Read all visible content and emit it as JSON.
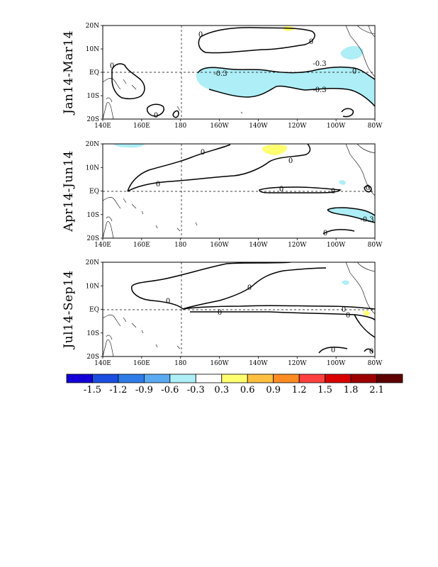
{
  "lat_labels": [
    "20N",
    "10N",
    "EQ",
    "10S",
    "20S"
  ],
  "lon_labels": [
    "140E",
    "160E",
    "180",
    "160W",
    "140W",
    "120W",
    "100W",
    "80W"
  ],
  "panels": [
    {
      "title": "Jan14-Mar14",
      "contour_labels": [
        "0",
        "0",
        "0",
        "0",
        "-0.3",
        "-0.3",
        "-0.3",
        "0"
      ]
    },
    {
      "title": "Apr14-Jun14",
      "contour_labels": [
        "0",
        "0",
        "0",
        "0",
        "0",
        "0",
        "0",
        "-0.3"
      ]
    },
    {
      "title": "Jul14-Sep14",
      "contour_labels": [
        "0",
        "0",
        "0",
        "0",
        "0",
        "0",
        "0"
      ]
    }
  ],
  "colorbar": {
    "colors": [
      "#1200d6",
      "#1b4ee0",
      "#2f7be8",
      "#5aaaf2",
      "#aeeef6",
      "#ffffff",
      "#ffff70",
      "#ffc040",
      "#ff8c22",
      "#ff4040",
      "#d80000",
      "#9c0000",
      "#5e0000"
    ],
    "labels": [
      "-1.5",
      "-1.2",
      "-0.9",
      "-0.6",
      "-0.3",
      "0.3",
      "0.6",
      "0.9",
      "1.2",
      "1.5",
      "1.8",
      "2.1"
    ]
  }
}
